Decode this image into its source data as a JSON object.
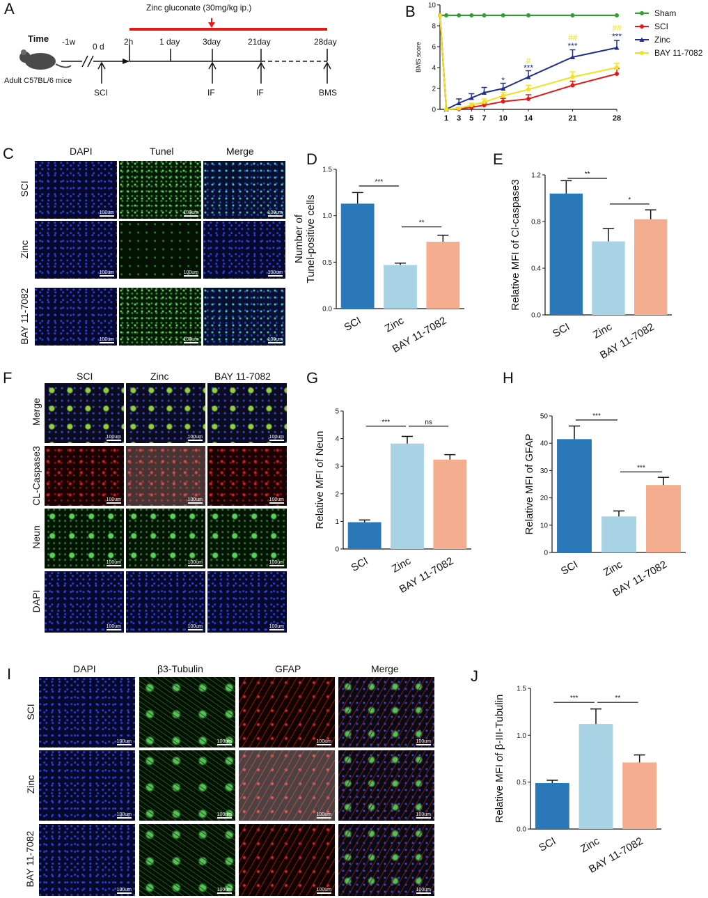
{
  "panel_letters": {
    "A": "A",
    "B": "B",
    "C": "C",
    "D": "D",
    "E": "E",
    "F": "F",
    "G": "G",
    "H": "H",
    "I": "I",
    "J": "J"
  },
  "panelA": {
    "time_label": "Time",
    "mouse_label": "Adult C57BL/6 mice",
    "drug_label": "Zinc gluconate (30mg/kg ip.)",
    "timepoints": [
      "-1w",
      "0 d",
      "2h",
      "1 day",
      "3day",
      "21day",
      "28day"
    ],
    "events": [
      "SCI",
      "IF",
      "IF",
      "BMS"
    ],
    "colors": {
      "drug_bar": "#e41a1a",
      "arrow": "#e41a1a"
    }
  },
  "scale_bar_label": "100um",
  "panelC": {
    "columns": [
      "DAPI",
      "Tunel",
      "Merge"
    ],
    "rows": [
      "SCI",
      "Zinc",
      "BAY 11-7082"
    ]
  },
  "panelF": {
    "columns": [
      "SCI",
      "Zinc",
      "BAY 11-7082"
    ],
    "rows": [
      "Merge",
      "CL-Caspase3",
      "Neun",
      "DAPI"
    ]
  },
  "panelI": {
    "columns": [
      "DAPI",
      "β3-Tubulin",
      "GFAP",
      "Merge"
    ],
    "rows": [
      "SCI",
      "Zinc",
      "BAY 11-7082"
    ]
  },
  "chart_data": [
    {
      "id": "B",
      "type": "line",
      "ylabel": "BMS score",
      "x": [
        1,
        3,
        5,
        7,
        10,
        14,
        21,
        28
      ],
      "x_ticks": [
        "1",
        "3",
        "5",
        "7",
        "10",
        "14",
        "21",
        "28"
      ],
      "y_ticks": [
        "0",
        "2",
        "4",
        "6",
        "8",
        "10"
      ],
      "ylim": [
        0,
        10
      ],
      "series": [
        {
          "name": "Sham",
          "color": "#2ca02c",
          "start": 9,
          "values": [
            9,
            9,
            9,
            9,
            9,
            9,
            9,
            9
          ],
          "errors": [
            0,
            0,
            0,
            0,
            0,
            0,
            0,
            0
          ]
        },
        {
          "name": "SCI",
          "color": "#e41a1a",
          "start": 9,
          "values": [
            0,
            0.05,
            0.2,
            0.4,
            0.75,
            1.0,
            2.3,
            3.4
          ],
          "errors": [
            0,
            0.1,
            0.15,
            0.2,
            0.3,
            0.4,
            0.4,
            0.5
          ]
        },
        {
          "name": "Zinc",
          "color": "#1f2f8f",
          "start": 9,
          "values": [
            0,
            0.6,
            1.1,
            1.6,
            2.0,
            3.1,
            5.0,
            5.9
          ],
          "errors": [
            0,
            0.4,
            0.4,
            0.5,
            0.5,
            0.6,
            0.7,
            0.7
          ]
        },
        {
          "name": "BAY 11-7082",
          "color": "#f2e21c",
          "start": 9,
          "values": [
            0,
            0.1,
            0.4,
            0.7,
            1.3,
            1.9,
            3.1,
            4.0
          ],
          "errors": [
            0,
            0.1,
            0.2,
            0.3,
            0.3,
            0.4,
            0.5,
            0.4
          ]
        }
      ],
      "annotations": [
        {
          "x": 10,
          "y_offset": 2.5,
          "text": "*",
          "color": "#1f2f8f"
        },
        {
          "x": 14,
          "y_offset": 3.7,
          "text": "***",
          "color": "#1f2f8f"
        },
        {
          "x": 14,
          "y_offset": 4.4,
          "text": "#",
          "color": "#f2e21c"
        },
        {
          "x": 21,
          "y_offset": 5.8,
          "text": "***",
          "color": "#1f2f8f"
        },
        {
          "x": 21,
          "y_offset": 6.6,
          "text": "##",
          "color": "#f2e21c"
        },
        {
          "x": 28,
          "y_offset": 6.7,
          "text": "***",
          "color": "#1f2f8f"
        },
        {
          "x": 28,
          "y_offset": 7.5,
          "text": "##",
          "color": "#f2e21c"
        }
      ],
      "legend_position": "right"
    },
    {
      "id": "D",
      "type": "bar",
      "categories": [
        "SCI",
        "Zinc",
        "BAY 11-7082"
      ],
      "values": [
        1.13,
        0.47,
        0.72
      ],
      "errors": [
        0.12,
        0.02,
        0.07
      ],
      "ylabel_lines": [
        "Number of",
        "Tunel-positive cells"
      ],
      "ylim": [
        0,
        1.5
      ],
      "y_ticks": [
        "0.0",
        "0.5",
        "1.0",
        "1.5"
      ],
      "colors": [
        "#2b78b8",
        "#a8d3e5",
        "#f5ad90"
      ],
      "significance": [
        {
          "from": 0,
          "to": 1,
          "y": 1.32,
          "text": "***"
        },
        {
          "from": 1,
          "to": 2,
          "y": 0.88,
          "text": "**"
        }
      ]
    },
    {
      "id": "E",
      "type": "bar",
      "categories": [
        "SCI",
        "Zinc",
        "BAY 11-7082"
      ],
      "values": [
        1.04,
        0.63,
        0.82
      ],
      "errors": [
        0.11,
        0.11,
        0.08
      ],
      "ylabel": "Relative  MFI of Cl-caspase3",
      "ylim": [
        0,
        1.2
      ],
      "y_ticks": [
        "0.0",
        "0.4",
        "0.8",
        "1.2"
      ],
      "colors": [
        "#2b78b8",
        "#a8d3e5",
        "#f5ad90"
      ],
      "significance": [
        {
          "from": 0,
          "to": 1,
          "y": 1.17,
          "text": "**"
        },
        {
          "from": 1,
          "to": 2,
          "y": 0.95,
          "text": "*"
        }
      ]
    },
    {
      "id": "G",
      "type": "bar",
      "categories": [
        "SCI",
        "Zinc",
        "BAY 11-7082"
      ],
      "values": [
        0.97,
        3.82,
        3.24
      ],
      "errors": [
        0.08,
        0.26,
        0.18
      ],
      "ylabel": "Relative  MFI of Neun",
      "ylim": [
        0,
        5
      ],
      "y_ticks": [
        "0",
        "1",
        "2",
        "3",
        "4",
        "5"
      ],
      "colors": [
        "#2b78b8",
        "#a8d3e5",
        "#f5ad90"
      ],
      "significance": [
        {
          "from": 0,
          "to": 1,
          "y": 4.45,
          "text": "***"
        },
        {
          "from": 1,
          "to": 2,
          "y": 4.45,
          "text": "ns"
        }
      ]
    },
    {
      "id": "H",
      "type": "bar",
      "categories": [
        "SCI",
        "Zinc",
        "BAY 11-7082"
      ],
      "values": [
        41.5,
        13.2,
        24.7
      ],
      "errors": [
        4.8,
        2.0,
        2.8
      ],
      "ylabel": "Relative  MFI of GFAP",
      "ylim": [
        0,
        50
      ],
      "y_ticks": [
        "0",
        "10",
        "20",
        "30",
        "40",
        "50"
      ],
      "colors": [
        "#2b78b8",
        "#a8d3e5",
        "#f5ad90"
      ],
      "significance": [
        {
          "from": 0,
          "to": 1,
          "y": 48.5,
          "text": "***"
        },
        {
          "from": 1,
          "to": 2,
          "y": 29.5,
          "text": "***"
        }
      ]
    },
    {
      "id": "J",
      "type": "bar",
      "categories": [
        "SCI",
        "Zinc",
        "BAY 11-7082"
      ],
      "values": [
        0.49,
        1.12,
        0.71
      ],
      "errors": [
        0.03,
        0.16,
        0.08
      ],
      "ylabel": "Relative  MFI of β-III-Tubulin",
      "ylim": [
        0,
        1.5
      ],
      "y_ticks": [
        "0.0",
        "0.5",
        "1.0",
        "1.5"
      ],
      "colors": [
        "#2b78b8",
        "#a8d3e5",
        "#f5ad90"
      ],
      "significance": [
        {
          "from": 0,
          "to": 1,
          "y": 1.35,
          "text": "***"
        },
        {
          "from": 1,
          "to": 2,
          "y": 1.35,
          "text": "**"
        }
      ]
    }
  ]
}
